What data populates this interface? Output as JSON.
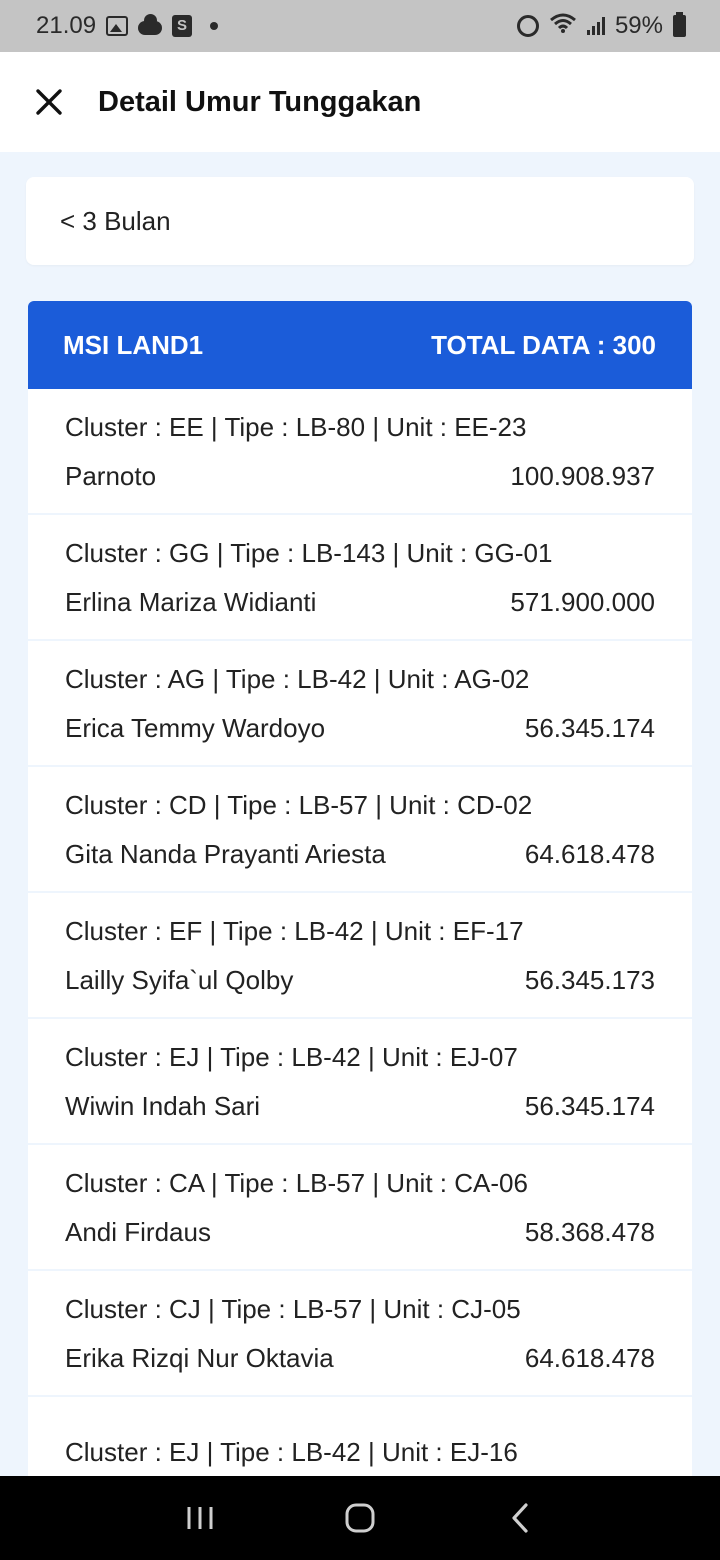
{
  "status_bar": {
    "time": "21.09",
    "battery": "59%"
  },
  "header": {
    "title": "Detail Umur Tunggakan"
  },
  "filter": {
    "selected": "< 3 Bulan"
  },
  "list": {
    "group_name": "MSI LAND1",
    "total_label": "TOTAL DATA : 300",
    "rows": [
      {
        "info": "Cluster : EE | Tipe : LB-80 | Unit : EE-23",
        "name": "Parnoto",
        "amount": "100.908.937"
      },
      {
        "info": "Cluster : GG | Tipe : LB-143 | Unit : GG-01",
        "name": "Erlina Mariza Widianti",
        "amount": "571.900.000"
      },
      {
        "info": "Cluster : AG | Tipe : LB-42 | Unit : AG-02",
        "name": "Erica Temmy Wardoyo",
        "amount": "56.345.174"
      },
      {
        "info": "Cluster : CD | Tipe : LB-57 | Unit : CD-02",
        "name": "Gita Nanda Prayanti Ariesta",
        "amount": "64.618.478"
      },
      {
        "info": "Cluster : EF | Tipe : LB-42 | Unit : EF-17",
        "name": "Lailly Syifa`ul Qolby",
        "amount": "56.345.173"
      },
      {
        "info": "Cluster : EJ | Tipe : LB-42 | Unit : EJ-07",
        "name": "Wiwin Indah Sari",
        "amount": "56.345.174"
      },
      {
        "info": "Cluster : CA | Tipe : LB-57 | Unit : CA-06",
        "name": "Andi Firdaus",
        "amount": "58.368.478"
      },
      {
        "info": "Cluster : CJ | Tipe : LB-57 | Unit : CJ-05",
        "name": "Erika Rizqi Nur Oktavia",
        "amount": "64.618.478"
      },
      {
        "info": "Cluster : EJ | Tipe : LB-42 | Unit : EJ-16",
        "name": "",
        "amount": ""
      }
    ]
  },
  "icons": {
    "close": "close-icon",
    "recents": "recent-apps-icon",
    "home": "home-icon",
    "back": "back-icon"
  },
  "colors": {
    "accent": "#1b5cd9",
    "background": "#eef5fd"
  }
}
